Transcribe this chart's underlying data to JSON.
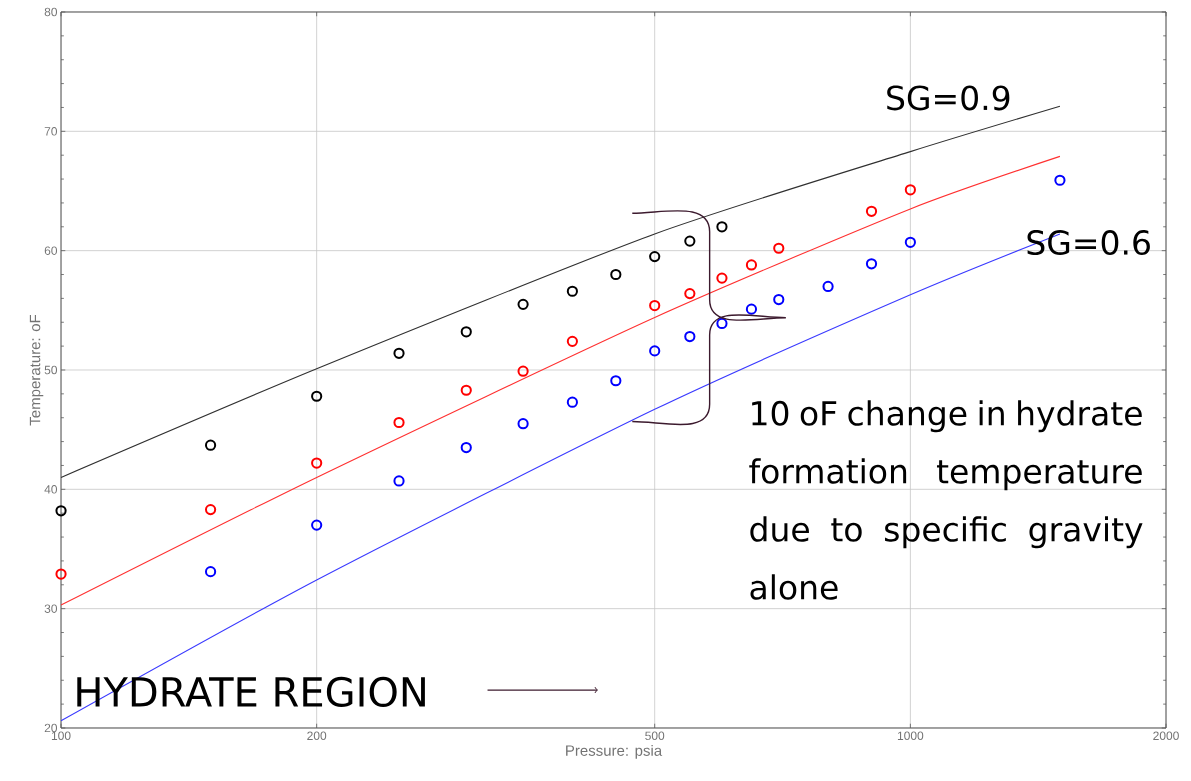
{
  "chart_data": {
    "type": "scatter",
    "xlabel": "Pressure:  psia",
    "ylabel": "Temperature:  oF",
    "log": "x",
    "grid": true,
    "marker": "circle",
    "xlim": [
      100,
      2000
    ],
    "ylim": [
      20,
      80
    ],
    "xticks": [
      100,
      200,
      500,
      1000,
      2000
    ],
    "yticks": [
      20,
      30,
      40,
      50,
      60,
      70,
      80
    ],
    "series": [
      {
        "type": "line",
        "marker": "none",
        "color": "#303030",
        "x": [
          100,
          200,
          500,
          1000,
          1500
        ],
        "values": [
          41.0,
          50.1,
          61.4,
          68.3,
          72.1
        ]
      },
      {
        "type": "line",
        "marker": "none",
        "color": "#ff3030",
        "x": [
          100,
          200,
          500,
          1000,
          1500
        ],
        "values": [
          30.3,
          41.0,
          54.4,
          63.5,
          67.9
        ]
      },
      {
        "type": "line",
        "marker": "none",
        "color": "#3a3aff",
        "x": [
          100,
          200,
          500,
          1000,
          1500
        ],
        "values": [
          20.6,
          32.4,
          46.7,
          56.3,
          61.4
        ]
      },
      {
        "color": "#000000",
        "x": [
          100,
          150,
          200,
          250,
          300,
          350,
          400,
          450,
          500,
          550,
          600
        ],
        "values": [
          38.2,
          43.7,
          47.8,
          51.4,
          53.2,
          55.5,
          56.6,
          58.0,
          59.5,
          60.8,
          62.0
        ]
      },
      {
        "color": "#ff0000",
        "x": [
          100,
          150,
          200,
          250,
          300,
          350,
          400,
          500,
          550,
          600,
          650,
          700,
          900,
          1000
        ],
        "values": [
          32.9,
          38.3,
          42.2,
          45.6,
          48.3,
          49.9,
          52.4,
          55.4,
          56.4,
          57.7,
          58.8,
          60.2,
          63.3,
          65.1
        ]
      },
      {
        "color": "#0000ff",
        "x": [
          150,
          200,
          250,
          300,
          350,
          400,
          450,
          500,
          550,
          600,
          650,
          700,
          800,
          900,
          1000,
          1500
        ],
        "values": [
          33.1,
          37.0,
          40.7,
          43.5,
          45.5,
          47.3,
          49.1,
          51.6,
          52.8,
          53.9,
          55.1,
          55.9,
          57.0,
          58.9,
          60.7,
          65.9
        ]
      }
    ],
    "annotations": [
      "SG=0.9",
      "SG=0.6",
      "10 oF change in hydrate formation temperature due to specific gravity alone",
      "HYDRATE REGION"
    ]
  }
}
